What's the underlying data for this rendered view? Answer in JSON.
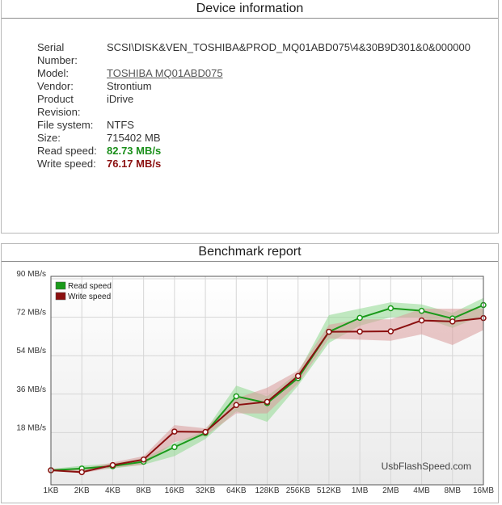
{
  "device": {
    "title": "Device information",
    "rows": [
      {
        "label": "Serial Number:",
        "value": "SCSI\\DISK&VEN_TOSHIBA&PROD_MQ01ABD075\\4&30B9D301&0&000000"
      },
      {
        "label": "Model:",
        "value": "TOSHIBA MQ01ABD075"
      },
      {
        "label": "Vendor:",
        "value": "Strontium"
      },
      {
        "label": "Product Revision:",
        "value": "iDrive"
      },
      {
        "label": "File system:",
        "value": "NTFS"
      },
      {
        "label": "Size:",
        "value": "715402 MB"
      },
      {
        "label": "Read speed:",
        "value": "82.73 MB/s"
      },
      {
        "label": "Write speed:",
        "value": "76.17 MB/s"
      }
    ]
  },
  "benchmark": {
    "title": "Benchmark report",
    "watermark": "UsbFlashSpeed.com"
  },
  "colors": {
    "read": "#1a9a1a",
    "write": "#8b1010",
    "read_band": "#8fd88f",
    "write_band": "#d99a9a"
  },
  "chart_data": {
    "type": "line",
    "title": "Benchmark report",
    "x": [
      "1KB",
      "2KB",
      "4KB",
      "8KB",
      "16KB",
      "32KB",
      "64KB",
      "128KB",
      "256KB",
      "512KB",
      "1MB",
      "2MB",
      "4MB",
      "8MB",
      "16MB"
    ],
    "yticks": [
      "18 MB/s",
      "36 MB/s",
      "54 MB/s",
      "72 MB/s",
      "90 MB/s"
    ],
    "ylim": [
      0,
      90
    ],
    "grid": true,
    "legend_position": "top-left",
    "series": [
      {
        "name": "Read speed",
        "values": [
          0.4,
          1.2,
          2.3,
          4.4,
          11.2,
          17.8,
          35.0,
          31.8,
          43.5,
          65.2,
          71.7,
          76.2,
          75.0,
          71.4,
          77.7
        ],
        "low": [
          0.0,
          0.3,
          1.2,
          3.0,
          7.0,
          15.0,
          28.0,
          23.0,
          40.0,
          60.0,
          68.0,
          72.0,
          72.0,
          67.0,
          73.0
        ],
        "high": [
          1.0,
          2.5,
          3.5,
          6.0,
          13.0,
          19.0,
          40.0,
          35.0,
          46.0,
          73.0,
          76.0,
          79.0,
          78.0,
          74.0,
          81.0
        ]
      },
      {
        "name": "Write speed",
        "values": [
          0.4,
          -0.5,
          2.8,
          5.4,
          18.5,
          18.3,
          30.9,
          32.4,
          44.5,
          65.2,
          65.3,
          65.4,
          70.5,
          70.0,
          71.6
        ],
        "low": [
          0.0,
          -1.0,
          1.5,
          3.0,
          13.5,
          16.5,
          27.0,
          27.0,
          41.0,
          62.0,
          61.5,
          61.0,
          64.0,
          59.0,
          66.0
        ],
        "high": [
          1.0,
          1.0,
          4.0,
          7.0,
          21.5,
          20.0,
          34.0,
          39.0,
          47.0,
          68.5,
          71.0,
          71.0,
          76.0,
          76.0,
          76.0
        ]
      }
    ]
  }
}
